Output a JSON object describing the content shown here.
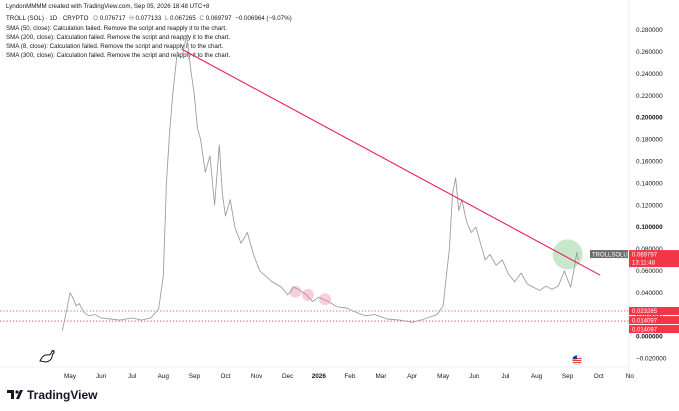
{
  "header": {
    "author_line": "LyndonMMMM created with TradingView.com, Sep 05, 2026 18:48 UTC+8",
    "symbol_line": "TROLL (SOL) · 1D · CRYPTO",
    "ohlc": {
      "o_label": "O",
      "o": "0.076717",
      "h_label": "H",
      "h": "0.077133",
      "l_label": "L",
      "l": "0.067265",
      "c_label": "C",
      "c": "0.069797",
      "change": "−0.006964 (−9.07%)"
    },
    "indicators": [
      "SMA (50, close): Calculation failed. Remove the script and reapply it to the chart.",
      "SMA (200, close): Calculation failed. Remove the script and reapply it to the chart.",
      "SMA (8, close): Calculation failed. Remove the script and reapply it to the chart.",
      "SMA (300, close): Calculation failed. Remove the script and reapply it to the chart."
    ]
  },
  "branding": {
    "logo_text": "TradingView"
  },
  "colors": {
    "price_line": "#9e9e9e",
    "trend_line": "#e91e63",
    "support_line": "#d32f2f",
    "tag_red": "#f23645",
    "tag_grey": "#6d6d6d",
    "highlight_green": "#4caf50",
    "highlight_pink": "#f48fb1"
  },
  "chart_data": {
    "type": "line",
    "y_axis": {
      "ticks": [
        "0.280000",
        "0.260000",
        "0.240000",
        "0.220000",
        "0.200000",
        "0.180000",
        "0.160000",
        "0.140000",
        "0.120000",
        "0.100000",
        "0.080000",
        "0.060000",
        "0.040000",
        "0.020000",
        "0.000000",
        "−0.020000"
      ],
      "bold_ticks": [
        "0.200000",
        "0.100000",
        "0.000000"
      ],
      "range": [
        -0.025,
        0.29
      ]
    },
    "x_axis": {
      "labels": [
        "May",
        "Jun",
        "Jul",
        "Aug",
        "Sep",
        "Oct",
        "Nov",
        "Dec",
        "2026",
        "Feb",
        "Mar",
        "Apr",
        "May",
        "Jun",
        "Jul",
        "Aug",
        "Sep",
        "Oct",
        "No"
      ],
      "bold_labels": [
        "2026"
      ],
      "month_index": [
        0,
        1,
        2,
        3,
        4,
        5,
        6,
        7,
        8,
        9,
        10,
        11,
        12,
        13,
        14,
        15,
        16,
        17,
        18
      ],
      "range": [
        -0.4,
        18.0
      ]
    },
    "series": [
      {
        "values": [
          [
            -0.25,
            0.005
          ],
          [
            -0.1,
            0.025
          ],
          [
            0.0,
            0.04
          ],
          [
            0.1,
            0.035
          ],
          [
            0.2,
            0.028
          ],
          [
            0.3,
            0.03
          ],
          [
            0.45,
            0.022
          ],
          [
            0.6,
            0.019
          ],
          [
            0.8,
            0.02
          ],
          [
            1.0,
            0.017
          ],
          [
            1.3,
            0.016
          ],
          [
            1.6,
            0.015
          ],
          [
            2.0,
            0.017
          ],
          [
            2.3,
            0.015
          ],
          [
            2.6,
            0.017
          ],
          [
            2.85,
            0.025
          ],
          [
            3.0,
            0.055
          ],
          [
            3.1,
            0.14
          ],
          [
            3.2,
            0.185
          ],
          [
            3.3,
            0.22
          ],
          [
            3.45,
            0.26
          ],
          [
            3.6,
            0.255
          ],
          [
            3.75,
            0.275
          ],
          [
            3.9,
            0.24
          ],
          [
            4.0,
            0.22
          ],
          [
            4.1,
            0.19
          ],
          [
            4.2,
            0.18
          ],
          [
            4.35,
            0.15
          ],
          [
            4.5,
            0.165
          ],
          [
            4.65,
            0.12
          ],
          [
            4.8,
            0.175
          ],
          [
            4.9,
            0.13
          ],
          [
            5.0,
            0.11
          ],
          [
            5.15,
            0.125
          ],
          [
            5.3,
            0.1
          ],
          [
            5.5,
            0.085
          ],
          [
            5.7,
            0.095
          ],
          [
            5.9,
            0.075
          ],
          [
            6.1,
            0.06
          ],
          [
            6.3,
            0.055
          ],
          [
            6.5,
            0.05
          ],
          [
            6.8,
            0.045
          ],
          [
            7.0,
            0.038
          ],
          [
            7.2,
            0.045
          ],
          [
            7.4,
            0.042
          ],
          [
            7.6,
            0.038
          ],
          [
            7.8,
            0.032
          ],
          [
            8.0,
            0.036
          ],
          [
            8.3,
            0.032
          ],
          [
            8.6,
            0.027
          ],
          [
            8.9,
            0.026
          ],
          [
            9.2,
            0.022
          ],
          [
            9.5,
            0.019
          ],
          [
            9.8,
            0.02
          ],
          [
            10.2,
            0.016
          ],
          [
            10.6,
            0.015
          ],
          [
            11.0,
            0.013
          ],
          [
            11.4,
            0.016
          ],
          [
            11.8,
            0.02
          ],
          [
            12.0,
            0.028
          ],
          [
            12.1,
            0.055
          ],
          [
            12.2,
            0.08
          ],
          [
            12.3,
            0.13
          ],
          [
            12.4,
            0.145
          ],
          [
            12.5,
            0.115
          ],
          [
            12.6,
            0.125
          ],
          [
            12.75,
            0.105
          ],
          [
            12.9,
            0.095
          ],
          [
            13.05,
            0.1
          ],
          [
            13.2,
            0.085
          ],
          [
            13.35,
            0.07
          ],
          [
            13.5,
            0.075
          ],
          [
            13.7,
            0.065
          ],
          [
            13.9,
            0.07
          ],
          [
            14.1,
            0.057
          ],
          [
            14.3,
            0.05
          ],
          [
            14.5,
            0.058
          ],
          [
            14.7,
            0.048
          ],
          [
            14.9,
            0.045
          ],
          [
            15.1,
            0.042
          ],
          [
            15.3,
            0.046
          ],
          [
            15.5,
            0.043
          ],
          [
            15.7,
            0.046
          ],
          [
            15.9,
            0.06
          ],
          [
            16.0,
            0.052
          ],
          [
            16.1,
            0.045
          ],
          [
            16.2,
            0.06
          ],
          [
            16.3,
            0.077
          ],
          [
            16.35,
            0.0698
          ]
        ]
      }
    ],
    "trend_line": {
      "from": [
        3.62,
        0.262
      ],
      "to": [
        17.05,
        0.056
      ]
    },
    "support_levels": [
      0.023285,
      0.014097
    ],
    "price_tags": [
      {
        "label": "TROLLSOLUSD",
        "value": "0.069797",
        "extra": "13:11:48",
        "y": 0.069797
      },
      {
        "value": "0.023285",
        "y": 0.023285
      },
      {
        "value": "0.014097",
        "y": 0.015
      },
      {
        "value": "0.014097",
        "y": 0.0068
      }
    ],
    "highlights": [
      {
        "x": 16.0,
        "y": 0.075,
        "kind": "green",
        "size": "large"
      },
      {
        "x": 7.25,
        "y": 0.041,
        "kind": "pink",
        "size": "small"
      },
      {
        "x": 7.65,
        "y": 0.038,
        "kind": "pink",
        "size": "small"
      },
      {
        "x": 8.2,
        "y": 0.034,
        "kind": "pink",
        "size": "small"
      }
    ],
    "grid": false,
    "legend": "none"
  }
}
